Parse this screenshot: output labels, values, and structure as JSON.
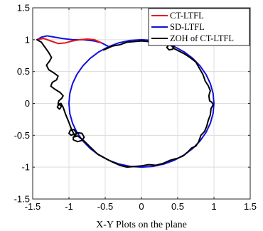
{
  "chart_data": {
    "type": "line",
    "title": "",
    "xlabel": "X-Y Plots on the plane",
    "ylabel": "",
    "xlim": [
      -1.5,
      1.5
    ],
    "ylim": [
      -1.5,
      1.5
    ],
    "xticks": [
      -1.5,
      -1,
      -0.5,
      0,
      0.5,
      1,
      1.5
    ],
    "yticks": [
      -1.5,
      -1,
      -0.5,
      0,
      0.5,
      1,
      1.5
    ],
    "xtick_labels": [
      "-1.5",
      "-1",
      "-0.5",
      "0",
      "0.5",
      "1",
      "1.5"
    ],
    "ytick_labels": [
      "-1.5",
      "-1",
      "-0.5",
      "0",
      "0.5",
      "1",
      "1.5"
    ],
    "grid": true,
    "legend_position": "top-right",
    "series": [
      {
        "name": "CT-LTFL",
        "color": "#e8141a",
        "points": [
          [
            -1.44,
            1.0
          ],
          [
            -1.35,
            1.02
          ],
          [
            -1.25,
            0.98
          ],
          [
            -1.15,
            0.94
          ],
          [
            -1.05,
            0.95
          ],
          [
            -0.95,
            0.98
          ],
          [
            -0.85,
            1.0
          ],
          [
            -0.75,
            1.01
          ],
          [
            -0.65,
            1.0
          ],
          [
            -0.55,
            0.95
          ]
        ]
      },
      {
        "name": "SD-LTFL",
        "color": "#1010e0",
        "points": [
          [
            -1.44,
            1.0
          ],
          [
            -1.38,
            1.04
          ],
          [
            -1.3,
            1.06
          ],
          [
            -1.2,
            1.04
          ],
          [
            -1.1,
            1.02
          ],
          [
            -0.95,
            1.0
          ],
          [
            -0.8,
            1.0
          ],
          [
            -0.65,
            0.98
          ],
          [
            -0.55,
            0.95
          ],
          [
            -0.452,
            0.891
          ],
          [
            -0.588,
            0.809
          ],
          [
            -0.707,
            0.707
          ],
          [
            -0.809,
            0.588
          ],
          [
            -0.891,
            0.454
          ],
          [
            -0.951,
            0.309
          ],
          [
            -0.988,
            0.156
          ],
          [
            -1.0,
            0.0
          ],
          [
            -0.988,
            -0.156
          ],
          [
            -0.951,
            -0.309
          ],
          [
            -0.891,
            -0.454
          ],
          [
            -0.809,
            -0.588
          ],
          [
            -0.707,
            -0.707
          ],
          [
            -0.588,
            -0.809
          ],
          [
            -0.454,
            -0.891
          ],
          [
            -0.309,
            -0.951
          ],
          [
            -0.156,
            -0.988
          ],
          [
            0.0,
            -1.0
          ],
          [
            0.156,
            -0.988
          ],
          [
            0.309,
            -0.951
          ],
          [
            0.454,
            -0.891
          ],
          [
            0.588,
            -0.809
          ],
          [
            0.707,
            -0.707
          ],
          [
            0.809,
            -0.588
          ],
          [
            0.891,
            -0.454
          ],
          [
            0.951,
            -0.309
          ],
          [
            0.988,
            -0.156
          ],
          [
            1.0,
            0.0
          ],
          [
            0.988,
            0.156
          ],
          [
            0.951,
            0.309
          ],
          [
            0.891,
            0.454
          ],
          [
            0.809,
            0.588
          ],
          [
            0.707,
            0.707
          ],
          [
            0.588,
            0.809
          ],
          [
            0.454,
            0.891
          ],
          [
            0.309,
            0.951
          ],
          [
            0.156,
            0.988
          ],
          [
            0.0,
            1.0
          ],
          [
            -0.156,
            0.988
          ],
          [
            -0.309,
            0.951
          ],
          [
            -0.452,
            0.891
          ]
        ]
      },
      {
        "name": "ZOH of CT-LTFL",
        "color": "#000000",
        "points": [
          [
            -1.44,
            1.0
          ],
          [
            -1.38,
            0.96
          ],
          [
            -1.33,
            0.88
          ],
          [
            -1.28,
            0.8
          ],
          [
            -1.24,
            0.72
          ],
          [
            -1.27,
            0.66
          ],
          [
            -1.31,
            0.6
          ],
          [
            -1.28,
            0.53
          ],
          [
            -1.21,
            0.48
          ],
          [
            -1.15,
            0.43
          ],
          [
            -1.17,
            0.37
          ],
          [
            -1.23,
            0.33
          ],
          [
            -1.25,
            0.27
          ],
          [
            -1.19,
            0.22
          ],
          [
            -1.12,
            0.17
          ],
          [
            -1.08,
            0.12
          ],
          [
            -1.1,
            0.08
          ],
          [
            -1.14,
            0.04
          ],
          [
            -1.15,
            -0.01
          ],
          [
            -1.1,
            -0.04
          ],
          [
            -1.13,
            -0.09
          ],
          [
            -1.16,
            -0.06
          ],
          [
            -1.14,
            -0.01
          ],
          [
            -1.11,
            0.0
          ],
          [
            -1.08,
            -0.06
          ],
          [
            -1.05,
            -0.16
          ],
          [
            -1.0,
            -0.3
          ],
          [
            -0.96,
            -0.42
          ],
          [
            -0.93,
            -0.48
          ],
          [
            -0.97,
            -0.5
          ],
          [
            -1.0,
            -0.47
          ],
          [
            -0.98,
            -0.42
          ],
          [
            -0.93,
            -0.41
          ],
          [
            -0.9,
            -0.46
          ],
          [
            -0.91,
            -0.52
          ],
          [
            -0.93,
            -0.52
          ],
          [
            -0.92,
            -0.49
          ],
          [
            -0.88,
            -0.46
          ],
          [
            -0.82,
            -0.47
          ],
          [
            -0.79,
            -0.53
          ],
          [
            -0.82,
            -0.58
          ],
          [
            -0.88,
            -0.6
          ],
          [
            -0.94,
            -0.57
          ],
          [
            -0.94,
            -0.53
          ],
          [
            -0.88,
            -0.51
          ],
          [
            -0.8,
            -0.58
          ],
          [
            -0.71,
            -0.68
          ],
          [
            -0.61,
            -0.79
          ],
          [
            -0.5,
            -0.86
          ],
          [
            -0.4,
            -0.92
          ],
          [
            -0.3,
            -0.97
          ],
          [
            -0.2,
            -1.0
          ],
          [
            -0.1,
            -0.99
          ],
          [
            0.0,
            -0.98
          ],
          [
            0.1,
            -0.96
          ],
          [
            0.2,
            -0.97
          ],
          [
            0.3,
            -0.94
          ],
          [
            0.4,
            -0.89
          ],
          [
            0.5,
            -0.86
          ],
          [
            0.58,
            -0.82
          ],
          [
            0.64,
            -0.76
          ],
          [
            0.69,
            -0.7
          ],
          [
            0.75,
            -0.67
          ],
          [
            0.79,
            -0.6
          ],
          [
            0.82,
            -0.5
          ],
          [
            0.87,
            -0.44
          ],
          [
            0.9,
            -0.36
          ],
          [
            0.92,
            -0.27
          ],
          [
            0.95,
            -0.18
          ],
          [
            0.96,
            -0.08
          ],
          [
            0.99,
            -0.02
          ],
          [
            0.97,
            0.02
          ],
          [
            0.94,
            0.04
          ],
          [
            0.93,
            0.12
          ],
          [
            0.95,
            0.2
          ],
          [
            0.92,
            0.28
          ],
          [
            0.88,
            0.35
          ],
          [
            0.85,
            0.45
          ],
          [
            0.8,
            0.55
          ],
          [
            0.75,
            0.65
          ],
          [
            0.67,
            0.72
          ],
          [
            0.59,
            0.78
          ],
          [
            0.52,
            0.82
          ],
          [
            0.45,
            0.86
          ],
          [
            0.42,
            0.9
          ],
          [
            0.38,
            0.92
          ],
          [
            0.35,
            0.88
          ],
          [
            0.38,
            0.84
          ],
          [
            0.43,
            0.85
          ],
          [
            0.45,
            0.9
          ],
          [
            0.38,
            0.93
          ],
          [
            0.29,
            0.94
          ],
          [
            0.2,
            0.96
          ],
          [
            0.1,
            0.97
          ],
          [
            0.0,
            0.98
          ],
          [
            -0.1,
            0.97
          ],
          [
            -0.2,
            0.96
          ],
          [
            -0.3,
            0.92
          ],
          [
            -0.4,
            0.9
          ],
          [
            -0.52,
            0.84
          ]
        ]
      }
    ]
  }
}
